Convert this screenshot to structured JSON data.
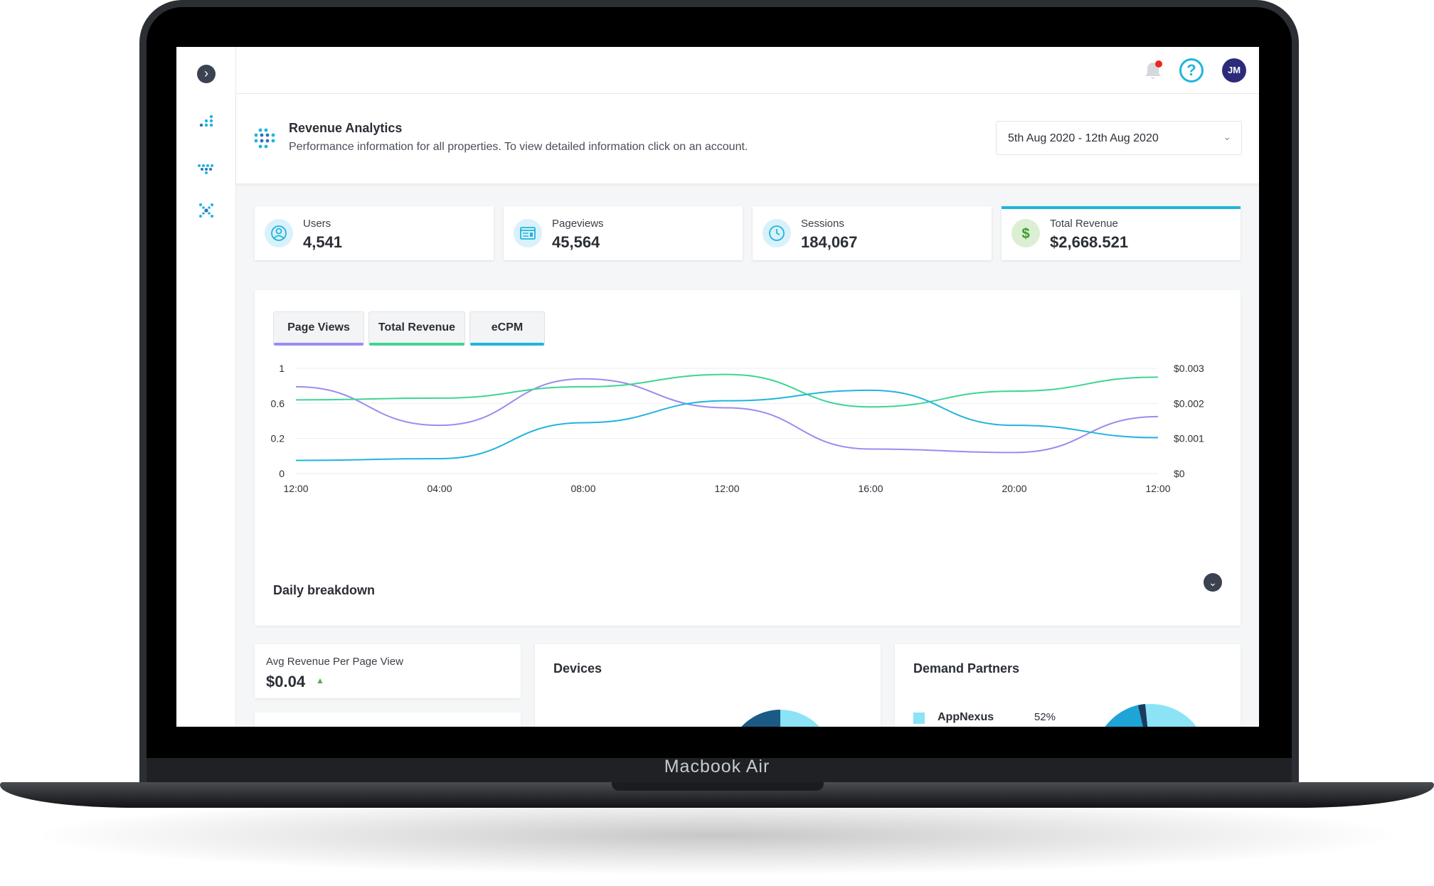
{
  "device": {
    "label": "Macbook Air"
  },
  "topbar": {
    "avatar_initials": "JM",
    "help_symbol": "?"
  },
  "header": {
    "title": "Revenue Analytics",
    "subtitle": "Performance information for all properties. To view detailed information click on an account.",
    "date_range": "5th Aug 2020 - 12th Aug 2020"
  },
  "stats": [
    {
      "label": "Users",
      "value": "4,541",
      "icon": "user-icon"
    },
    {
      "label": "Pageviews",
      "value": "45,564",
      "icon": "browser-icon"
    },
    {
      "label": "Sessions",
      "value": "184,067",
      "icon": "clock-icon"
    },
    {
      "label": "Total Revenue",
      "value": "$2,668.521",
      "icon": "dollar-icon"
    }
  ],
  "tabs": [
    {
      "label": "Page Views",
      "color": "#9a8cf0"
    },
    {
      "label": "Total Revenue",
      "color": "#3fd494"
    },
    {
      "label": "eCPM",
      "color": "#1fb5dd"
    }
  ],
  "chart_data": {
    "type": "line",
    "x": [
      "12:00",
      "04:00",
      "08:00",
      "12:00",
      "16:00",
      "20:00",
      "12:00"
    ],
    "y_left_ticks": [
      "1",
      "0.6",
      "0.2",
      "0"
    ],
    "y_right_ticks": [
      "$0.003",
      "$0.002",
      "$0.001",
      "$0"
    ],
    "y_left_range": [
      0,
      1.2
    ],
    "y_right_range": [
      0,
      0.003
    ],
    "grid": true,
    "series": [
      {
        "name": "Page Views",
        "color": "#9a8cf0",
        "values": [
          0.99,
          0.55,
          1.08,
          0.75,
          0.28,
          0.24,
          0.65
        ]
      },
      {
        "name": "Total Revenue",
        "color": "#3fd494",
        "values": [
          0.84,
          0.86,
          0.99,
          1.13,
          0.76,
          0.94,
          1.1
        ]
      },
      {
        "name": "eCPM",
        "color": "#1fb5dd",
        "values": [
          0.15,
          0.17,
          0.58,
          0.83,
          0.95,
          0.55,
          0.41
        ]
      }
    ]
  },
  "breakdown": {
    "label": "Daily breakdown"
  },
  "avg_revenue": {
    "label": "Avg Revenue Per Page View",
    "value": "$0.04"
  },
  "devices": {
    "title": "Devices"
  },
  "partners": {
    "title": "Demand Partners",
    "items": [
      {
        "name": "AppNexus",
        "pct": "52%",
        "color": "#8be3f5"
      }
    ]
  }
}
